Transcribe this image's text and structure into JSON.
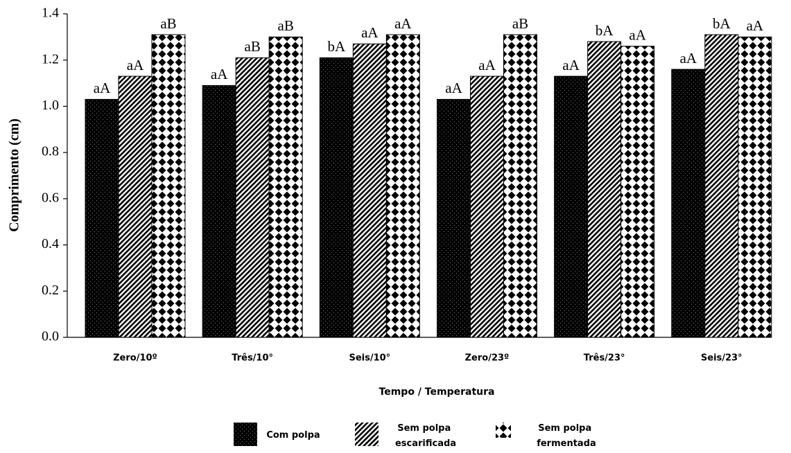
{
  "chart_data": {
    "type": "bar",
    "x_label": "Tempo / Temperatura",
    "y_label": "Comprimento (cm)",
    "categories": [
      "Zero/10º",
      "Três/10°",
      "Seis/10°",
      "Zero/23º",
      "Três/23°",
      "Seis/23°"
    ],
    "series": [
      {
        "name": "Com polpa",
        "color": "#000000",
        "values": [
          1.03,
          1.09,
          1.21,
          1.03,
          1.13,
          1.16
        ],
        "letters": [
          "aA",
          "aA",
          "bA",
          "aA",
          "aA",
          "aA"
        ]
      },
      {
        "name": "Sem polpa escarificada",
        "color": "#000000",
        "values": [
          1.13,
          1.21,
          1.27,
          1.13,
          1.28,
          1.31
        ],
        "letters": [
          "aA",
          "aB",
          "aA",
          "aA",
          "bA",
          "bA"
        ]
      },
      {
        "name": "Sem polpa fermentada",
        "color": "#000000",
        "values": [
          1.31,
          1.3,
          1.31,
          1.31,
          1.26,
          1.3
        ],
        "letters": [
          "aB",
          "aB",
          "aA",
          "aB",
          "aA",
          "aA"
        ]
      }
    ],
    "ylim": [
      0,
      1.4
    ],
    "yticks": [
      {
        "value": 0,
        "label": "0.0"
      },
      0.2,
      0.4,
      0.6,
      0.8,
      {
        "value": 1,
        "label": "1.0"
      },
      1.2,
      1.4
    ],
    "legend": "bottom"
  }
}
